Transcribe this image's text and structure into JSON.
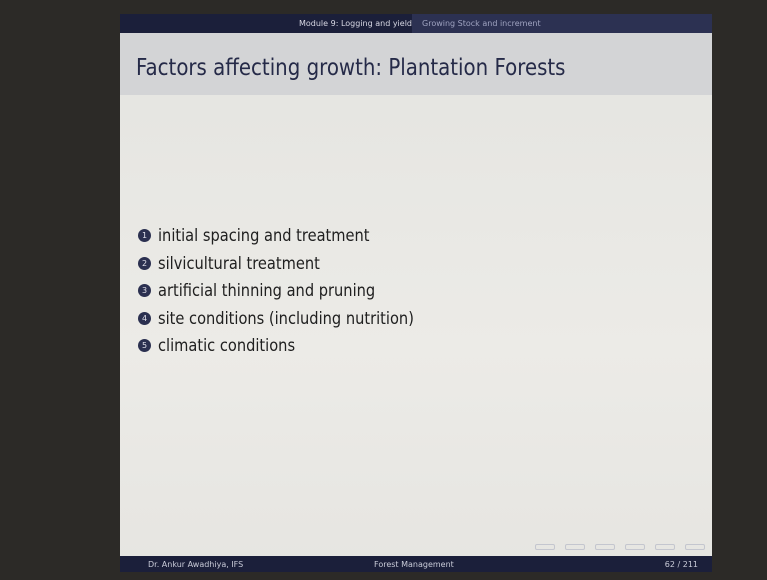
{
  "header": {
    "section": "Module 9: Logging and yield",
    "subsection": "Growing Stock and increment"
  },
  "title": "Factors affecting growth: Plantation Forests",
  "items": [
    {
      "number": "1",
      "text": "initial spacing and treatment"
    },
    {
      "number": "2",
      "text": "silvicultural treatment"
    },
    {
      "number": "3",
      "text": "artificial thinning and pruning"
    },
    {
      "number": "4",
      "text": "site conditions (including nutrition)"
    },
    {
      "number": "5",
      "text": "climatic conditions"
    }
  ],
  "footer": {
    "author": "Dr. Ankur Awadhiya, IFS",
    "course": "Forest Management",
    "page": "62 / 211"
  }
}
